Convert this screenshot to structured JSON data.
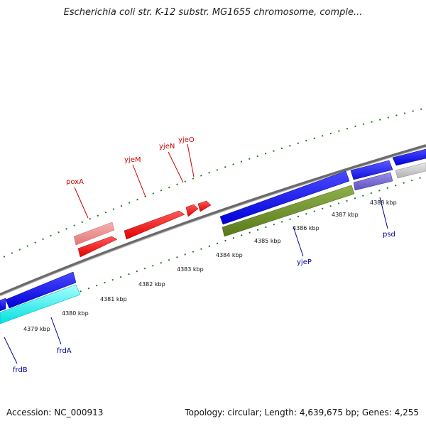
{
  "title": "Escherichia coli str. K-12 substr. MG1655 chromosome, comple...",
  "footer": {
    "accession": "Accession: NC_000913",
    "summary": "Topology: circular; Length: 4,639,675 bp; Genes: 4,255"
  },
  "colors": {
    "backbone": "#888888",
    "tick": "#1c7a1c",
    "forward_label": "#cc0000",
    "reverse_label": "#000099"
  },
  "ticks": [
    {
      "label": "4379 kbp"
    },
    {
      "label": "4380 kbp"
    },
    {
      "label": "4381 kbp"
    },
    {
      "label": "4382 kbp"
    },
    {
      "label": "4383 kbp"
    },
    {
      "label": "4384 kbp"
    },
    {
      "label": "4385 kbp"
    },
    {
      "label": "4386 kbp"
    },
    {
      "label": "4387 kbp"
    },
    {
      "label": "4388 kbp"
    }
  ],
  "genes": {
    "forward": [
      {
        "name": "poxA",
        "color": "#cc0000"
      },
      {
        "name": "yjeM",
        "color": "#cc0000"
      },
      {
        "name": "yjeN",
        "color": "#cc0000"
      },
      {
        "name": "yjeO",
        "color": "#cc0000"
      }
    ],
    "reverse": [
      {
        "name": "frdB",
        "color": "#000099"
      },
      {
        "name": "frdA",
        "color": "#000099"
      },
      {
        "name": "yjeP",
        "color": "#000099"
      },
      {
        "name": "psd",
        "color": "#000099"
      }
    ]
  }
}
